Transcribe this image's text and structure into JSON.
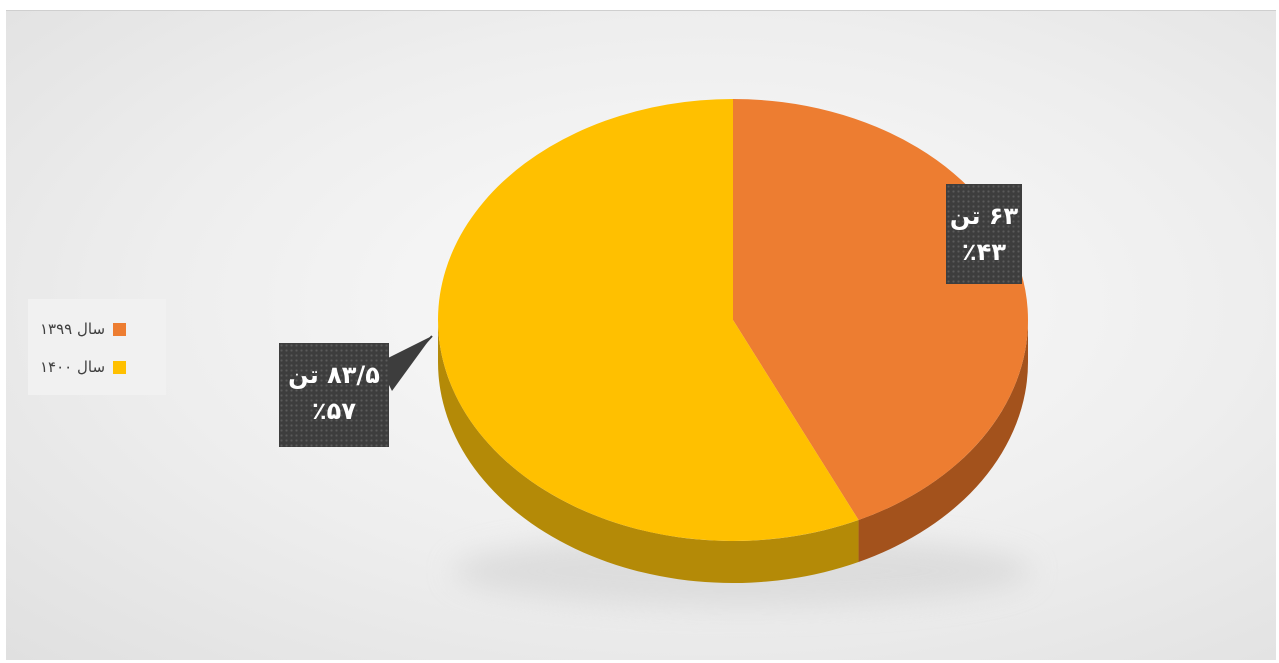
{
  "chart_data": {
    "type": "pie",
    "style": "3d",
    "legend_position": "left",
    "slices": [
      {
        "label": "سال ۱۳۹۹",
        "value": 63,
        "percent": 43,
        "value_label": "۶۳ تن",
        "percent_label": "٪۴۳",
        "color": "#ED7D31",
        "side_color": "#A3521C"
      },
      {
        "label": "سال ۱۴۰۰",
        "value": 83.5,
        "percent": 57,
        "value_label": "۸۳/۵ تن",
        "percent_label": "٪۵۷",
        "color": "#FFC000",
        "side_color": "#B48A07"
      }
    ]
  }
}
